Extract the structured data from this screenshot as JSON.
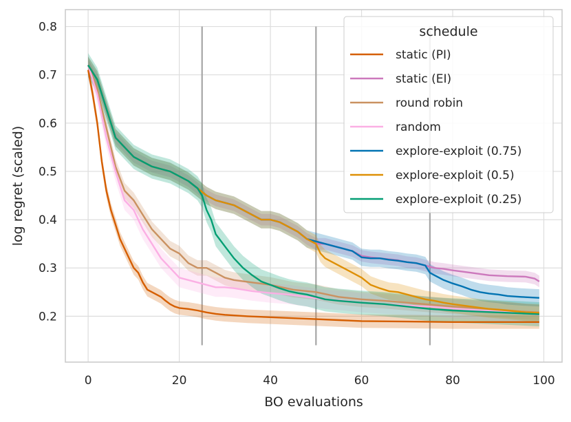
{
  "chart_data": {
    "type": "line",
    "title": "",
    "xlabel": "BO evaluations",
    "ylabel": "log regret (scaled)",
    "xlim": [
      -5,
      104
    ],
    "ylim": [
      0.105,
      0.835
    ],
    "xticks": [
      0,
      20,
      40,
      60,
      80,
      100
    ],
    "yticks": [
      0.2,
      0.3,
      0.4,
      0.5,
      0.6,
      0.7,
      0.8
    ],
    "grid": true,
    "legend": {
      "title": "schedule",
      "position": "top-right"
    },
    "switch_markers": {
      "x": [
        25,
        50,
        75
      ],
      "y_range": [
        0.14,
        0.8
      ],
      "color": "#a6a6a6"
    },
    "series": [
      {
        "name": "static (PI)",
        "color": "#d55e00",
        "band_halfwidth": 0.014,
        "points": [
          [
            0,
            0.71
          ],
          [
            1,
            0.66
          ],
          [
            2,
            0.6
          ],
          [
            3,
            0.52
          ],
          [
            4,
            0.46
          ],
          [
            5,
            0.42
          ],
          [
            6,
            0.39
          ],
          [
            7,
            0.36
          ],
          [
            8,
            0.34
          ],
          [
            9,
            0.32
          ],
          [
            10,
            0.3
          ],
          [
            11,
            0.29
          ],
          [
            12,
            0.27
          ],
          [
            13,
            0.255
          ],
          [
            14,
            0.25
          ],
          [
            15,
            0.245
          ],
          [
            16,
            0.24
          ],
          [
            17,
            0.232
          ],
          [
            18,
            0.225
          ],
          [
            19,
            0.22
          ],
          [
            20,
            0.217
          ],
          [
            22,
            0.215
          ],
          [
            24,
            0.212
          ],
          [
            26,
            0.208
          ],
          [
            28,
            0.205
          ],
          [
            30,
            0.203
          ],
          [
            35,
            0.2
          ],
          [
            40,
            0.198
          ],
          [
            45,
            0.196
          ],
          [
            50,
            0.194
          ],
          [
            55,
            0.192
          ],
          [
            60,
            0.19
          ],
          [
            70,
            0.189
          ],
          [
            80,
            0.188
          ],
          [
            90,
            0.188
          ],
          [
            99,
            0.188
          ]
        ]
      },
      {
        "name": "static (EI)",
        "color": "#cc78bc",
        "band_halfwidth": 0.012,
        "points": [
          [
            0,
            0.72
          ],
          [
            2,
            0.69
          ],
          [
            4,
            0.63
          ],
          [
            6,
            0.57
          ],
          [
            8,
            0.55
          ],
          [
            10,
            0.53
          ],
          [
            12,
            0.52
          ],
          [
            14,
            0.51
          ],
          [
            16,
            0.505
          ],
          [
            18,
            0.5
          ],
          [
            20,
            0.49
          ],
          [
            22,
            0.48
          ],
          [
            24,
            0.465
          ],
          [
            26,
            0.45
          ],
          [
            28,
            0.44
          ],
          [
            30,
            0.435
          ],
          [
            32,
            0.43
          ],
          [
            34,
            0.42
          ],
          [
            36,
            0.41
          ],
          [
            38,
            0.4
          ],
          [
            40,
            0.4
          ],
          [
            42,
            0.395
          ],
          [
            44,
            0.385
          ],
          [
            46,
            0.375
          ],
          [
            48,
            0.36
          ],
          [
            50,
            0.35
          ],
          [
            52,
            0.35
          ],
          [
            54,
            0.345
          ],
          [
            56,
            0.34
          ],
          [
            58,
            0.335
          ],
          [
            60,
            0.325
          ],
          [
            62,
            0.322
          ],
          [
            64,
            0.32
          ],
          [
            66,
            0.318
          ],
          [
            68,
            0.316
          ],
          [
            70,
            0.312
          ],
          [
            72,
            0.31
          ],
          [
            74,
            0.305
          ],
          [
            76,
            0.3
          ],
          [
            78,
            0.298
          ],
          [
            80,
            0.295
          ],
          [
            84,
            0.29
          ],
          [
            88,
            0.285
          ],
          [
            92,
            0.283
          ],
          [
            96,
            0.282
          ],
          [
            98,
            0.278
          ],
          [
            99,
            0.272
          ]
        ]
      },
      {
        "name": "round robin",
        "color": "#ca9161",
        "band_halfwidth": 0.016,
        "points": [
          [
            0,
            0.72
          ],
          [
            2,
            0.67
          ],
          [
            4,
            0.59
          ],
          [
            6,
            0.51
          ],
          [
            8,
            0.46
          ],
          [
            10,
            0.44
          ],
          [
            12,
            0.41
          ],
          [
            14,
            0.38
          ],
          [
            16,
            0.36
          ],
          [
            18,
            0.34
          ],
          [
            20,
            0.33
          ],
          [
            22,
            0.31
          ],
          [
            24,
            0.3
          ],
          [
            26,
            0.3
          ],
          [
            28,
            0.29
          ],
          [
            30,
            0.28
          ],
          [
            32,
            0.275
          ],
          [
            36,
            0.27
          ],
          [
            40,
            0.265
          ],
          [
            45,
            0.255
          ],
          [
            50,
            0.25
          ],
          [
            55,
            0.24
          ],
          [
            60,
            0.235
          ],
          [
            65,
            0.232
          ],
          [
            70,
            0.228
          ],
          [
            75,
            0.224
          ],
          [
            80,
            0.22
          ],
          [
            85,
            0.217
          ],
          [
            90,
            0.214
          ],
          [
            95,
            0.21
          ],
          [
            99,
            0.208
          ]
        ]
      },
      {
        "name": "random",
        "color": "#fbafe4",
        "band_halfwidth": 0.02,
        "points": [
          [
            0,
            0.72
          ],
          [
            2,
            0.66
          ],
          [
            4,
            0.57
          ],
          [
            6,
            0.5
          ],
          [
            8,
            0.44
          ],
          [
            10,
            0.42
          ],
          [
            12,
            0.38
          ],
          [
            14,
            0.35
          ],
          [
            16,
            0.32
          ],
          [
            18,
            0.3
          ],
          [
            20,
            0.28
          ],
          [
            22,
            0.275
          ],
          [
            24,
            0.27
          ],
          [
            26,
            0.265
          ],
          [
            28,
            0.26
          ],
          [
            30,
            0.26
          ],
          [
            32,
            0.258
          ],
          [
            34,
            0.255
          ],
          [
            36,
            0.252
          ],
          [
            38,
            0.25
          ],
          [
            40,
            0.248
          ],
          [
            44,
            0.245
          ],
          [
            48,
            0.24
          ],
          [
            52,
            0.235
          ],
          [
            56,
            0.232
          ],
          [
            60,
            0.228
          ],
          [
            65,
            0.225
          ],
          [
            70,
            0.222
          ],
          [
            75,
            0.22
          ],
          [
            80,
            0.216
          ],
          [
            85,
            0.213
          ],
          [
            90,
            0.21
          ],
          [
            95,
            0.207
          ],
          [
            99,
            0.203
          ]
        ]
      },
      {
        "name": "explore-exploit (0.75)",
        "color": "#0173b2",
        "band_halfwidth": 0.018,
        "points": [
          [
            0,
            0.72
          ],
          [
            2,
            0.69
          ],
          [
            4,
            0.63
          ],
          [
            6,
            0.57
          ],
          [
            8,
            0.55
          ],
          [
            10,
            0.53
          ],
          [
            12,
            0.52
          ],
          [
            14,
            0.51
          ],
          [
            16,
            0.505
          ],
          [
            18,
            0.5
          ],
          [
            20,
            0.49
          ],
          [
            22,
            0.48
          ],
          [
            24,
            0.465
          ],
          [
            26,
            0.45
          ],
          [
            28,
            0.44
          ],
          [
            30,
            0.435
          ],
          [
            32,
            0.43
          ],
          [
            34,
            0.42
          ],
          [
            36,
            0.41
          ],
          [
            38,
            0.4
          ],
          [
            40,
            0.4
          ],
          [
            42,
            0.395
          ],
          [
            44,
            0.385
          ],
          [
            46,
            0.375
          ],
          [
            48,
            0.36
          ],
          [
            50,
            0.355
          ],
          [
            52,
            0.35
          ],
          [
            54,
            0.345
          ],
          [
            56,
            0.34
          ],
          [
            58,
            0.335
          ],
          [
            60,
            0.322
          ],
          [
            62,
            0.32
          ],
          [
            64,
            0.32
          ],
          [
            66,
            0.317
          ],
          [
            68,
            0.315
          ],
          [
            70,
            0.312
          ],
          [
            72,
            0.31
          ],
          [
            74,
            0.305
          ],
          [
            75,
            0.29
          ],
          [
            76,
            0.285
          ],
          [
            78,
            0.275
          ],
          [
            80,
            0.268
          ],
          [
            82,
            0.262
          ],
          [
            84,
            0.255
          ],
          [
            86,
            0.25
          ],
          [
            88,
            0.247
          ],
          [
            90,
            0.245
          ],
          [
            92,
            0.242
          ],
          [
            95,
            0.24
          ],
          [
            99,
            0.238
          ]
        ]
      },
      {
        "name": "explore-exploit (0.5)",
        "color": "#de8f05",
        "band_halfwidth": 0.018,
        "points": [
          [
            0,
            0.72
          ],
          [
            2,
            0.69
          ],
          [
            4,
            0.63
          ],
          [
            6,
            0.57
          ],
          [
            8,
            0.55
          ],
          [
            10,
            0.53
          ],
          [
            12,
            0.52
          ],
          [
            14,
            0.51
          ],
          [
            16,
            0.505
          ],
          [
            18,
            0.5
          ],
          [
            20,
            0.49
          ],
          [
            22,
            0.48
          ],
          [
            24,
            0.465
          ],
          [
            26,
            0.45
          ],
          [
            28,
            0.44
          ],
          [
            30,
            0.435
          ],
          [
            32,
            0.43
          ],
          [
            34,
            0.42
          ],
          [
            36,
            0.41
          ],
          [
            38,
            0.4
          ],
          [
            40,
            0.4
          ],
          [
            42,
            0.395
          ],
          [
            44,
            0.385
          ],
          [
            46,
            0.375
          ],
          [
            48,
            0.36
          ],
          [
            50,
            0.35
          ],
          [
            51,
            0.33
          ],
          [
            52,
            0.32
          ],
          [
            54,
            0.31
          ],
          [
            56,
            0.3
          ],
          [
            58,
            0.29
          ],
          [
            60,
            0.28
          ],
          [
            62,
            0.265
          ],
          [
            64,
            0.258
          ],
          [
            66,
            0.252
          ],
          [
            68,
            0.25
          ],
          [
            70,
            0.245
          ],
          [
            72,
            0.24
          ],
          [
            74,
            0.235
          ],
          [
            76,
            0.232
          ],
          [
            78,
            0.228
          ],
          [
            80,
            0.225
          ],
          [
            84,
            0.22
          ],
          [
            88,
            0.215
          ],
          [
            92,
            0.212
          ],
          [
            96,
            0.208
          ],
          [
            99,
            0.207
          ]
        ]
      },
      {
        "name": "explore-exploit (0.25)",
        "color": "#029e73",
        "band_halfwidth": 0.025,
        "points": [
          [
            0,
            0.72
          ],
          [
            2,
            0.69
          ],
          [
            4,
            0.63
          ],
          [
            6,
            0.57
          ],
          [
            8,
            0.55
          ],
          [
            10,
            0.53
          ],
          [
            12,
            0.52
          ],
          [
            14,
            0.51
          ],
          [
            16,
            0.505
          ],
          [
            18,
            0.5
          ],
          [
            20,
            0.49
          ],
          [
            22,
            0.48
          ],
          [
            24,
            0.465
          ],
          [
            25,
            0.45
          ],
          [
            26,
            0.42
          ],
          [
            27,
            0.4
          ],
          [
            28,
            0.37
          ],
          [
            30,
            0.345
          ],
          [
            32,
            0.32
          ],
          [
            34,
            0.3
          ],
          [
            36,
            0.285
          ],
          [
            38,
            0.272
          ],
          [
            40,
            0.265
          ],
          [
            42,
            0.258
          ],
          [
            44,
            0.252
          ],
          [
            46,
            0.248
          ],
          [
            48,
            0.245
          ],
          [
            50,
            0.24
          ],
          [
            52,
            0.235
          ],
          [
            55,
            0.232
          ],
          [
            60,
            0.228
          ],
          [
            65,
            0.225
          ],
          [
            70,
            0.22
          ],
          [
            75,
            0.215
          ],
          [
            80,
            0.212
          ],
          [
            85,
            0.21
          ],
          [
            90,
            0.208
          ],
          [
            95,
            0.206
          ],
          [
            99,
            0.204
          ]
        ]
      }
    ]
  }
}
